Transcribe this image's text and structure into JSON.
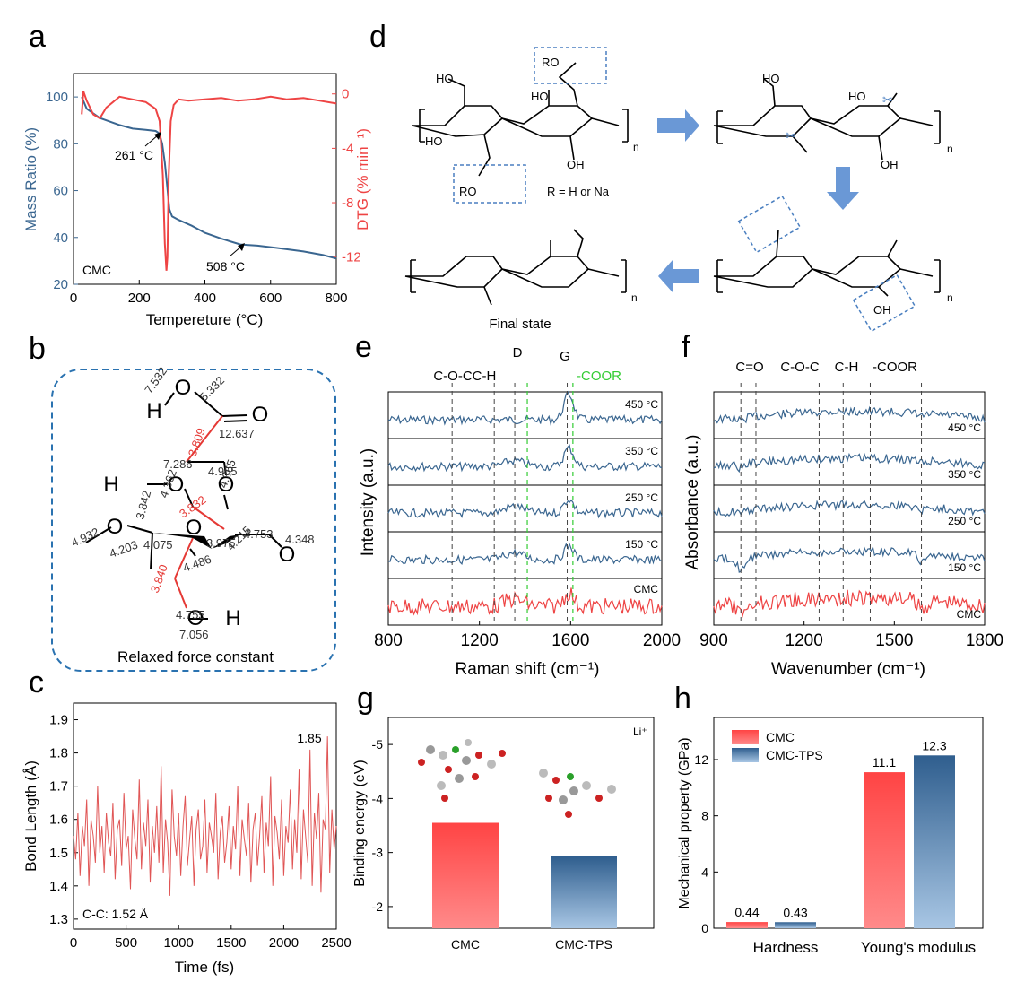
{
  "colors": {
    "blue": "#3a6690",
    "red": "#ee4444",
    "green": "#33cc33",
    "dash": "#555555"
  },
  "panels": {
    "a": {
      "letter": "a",
      "corner_text": "CMC",
      "xlabel": "Tempereture (°C)",
      "ylabel_left": "Mass Ratio (%)",
      "ylabel_right": "DTG (% min⁻¹)",
      "xticks": [
        "0",
        "200",
        "400",
        "600",
        "800"
      ],
      "yticks_left": [
        "20",
        "40",
        "60",
        "80",
        "100"
      ],
      "yticks_right": [
        "0",
        "-4",
        "-8",
        "-12"
      ],
      "annotations": [
        "261 °C",
        "508 °C"
      ],
      "xlim": [
        0,
        800
      ],
      "ylim_left": [
        20,
        110
      ],
      "ylim_right": [
        -14,
        1.5
      ],
      "mass_series": {
        "x": [
          25,
          40,
          60,
          80,
          100,
          140,
          180,
          220,
          250,
          261,
          270,
          278,
          285,
          292,
          300,
          320,
          360,
          400,
          450,
          508,
          560,
          620,
          700,
          760,
          800
        ],
        "y": [
          100,
          95,
          93,
          91,
          90,
          88,
          86.5,
          86,
          85.5,
          84.5,
          80,
          72,
          62,
          52,
          49,
          47.5,
          45,
          42,
          39.5,
          37,
          36.5,
          35.5,
          34,
          32.5,
          31
        ]
      },
      "dtg_series": {
        "x": [
          25,
          30,
          40,
          60,
          80,
          100,
          140,
          180,
          220,
          250,
          262,
          272,
          278,
          283,
          286,
          290,
          296,
          305,
          320,
          350,
          400,
          450,
          500,
          550,
          600,
          650,
          700,
          750,
          800
        ],
        "y": [
          -1.5,
          0.2,
          -0.5,
          -1.5,
          -1.8,
          -1,
          -0.2,
          -0.4,
          -0.6,
          -1.1,
          -2,
          -6,
          -11,
          -13,
          -12,
          -6,
          -2,
          -0.8,
          -0.4,
          -0.5,
          -0.4,
          -0.3,
          -0.5,
          -0.4,
          -0.2,
          -0.4,
          -0.3,
          -0.5,
          -0.7
        ]
      }
    },
    "b": {
      "letter": "b",
      "caption": "Relaxed force constant",
      "atoms": [
        "H",
        "O",
        "O",
        "H",
        "O",
        "O",
        "O",
        "O",
        "O",
        "H"
      ],
      "black_values": [
        "7.532",
        "5.332",
        "12.637",
        "4.955",
        "7.286",
        "4.362",
        "4.365",
        "4.932",
        "4.203",
        "3.842",
        "4.075",
        "4.486",
        "3.975",
        "4.215",
        "4.753",
        "4.348",
        "4.755",
        "7.056"
      ],
      "red_values": [
        "3.809",
        "3.832",
        "3.840"
      ]
    },
    "c": {
      "letter": "c",
      "xlabel": "Time (fs)",
      "ylabel": "Bond Length (Å)",
      "xticks": [
        "0",
        "500",
        "1000",
        "1500",
        "2000",
        "2500"
      ],
      "yticks": [
        "1.3",
        "1.4",
        "1.5",
        "1.6",
        "1.7",
        "1.8",
        "1.9"
      ],
      "xlim": [
        0,
        2500
      ],
      "ylim": [
        1.27,
        1.95
      ],
      "annotation_max": "1.85",
      "annotation_eq": "C-C: 1.52  Å",
      "series_y": [
        1.55,
        1.48,
        1.62,
        1.43,
        1.58,
        1.52,
        1.66,
        1.4,
        1.6,
        1.55,
        1.47,
        1.7,
        1.5,
        1.58,
        1.44,
        1.62,
        1.53,
        1.49,
        1.65,
        1.42,
        1.57,
        1.6,
        1.46,
        1.68,
        1.51,
        1.55,
        1.39,
        1.63,
        1.54,
        1.48,
        1.72,
        1.45,
        1.59,
        1.52,
        1.66,
        1.41,
        1.58,
        1.5,
        1.64,
        1.47,
        1.76,
        1.44,
        1.6,
        1.53,
        1.37,
        1.69,
        1.55,
        1.49,
        1.62,
        1.43,
        1.58,
        1.67,
        1.46,
        1.54,
        1.61,
        1.4,
        1.57,
        1.63,
        1.48,
        1.52,
        1.66,
        1.44,
        1.59,
        1.55,
        1.5,
        1.68,
        1.42,
        1.56,
        1.61,
        1.47,
        1.53,
        1.64,
        1.45,
        1.58,
        1.51,
        1.7,
        1.43,
        1.6,
        1.54,
        1.49,
        1.65,
        1.41,
        1.57,
        1.62,
        1.46,
        1.55,
        1.67,
        1.44,
        1.59,
        1.52,
        1.73,
        1.4,
        1.61,
        1.56,
        1.48,
        1.66,
        1.43,
        1.58,
        1.53,
        1.69,
        1.45,
        1.6,
        1.5,
        1.75,
        1.42,
        1.63,
        1.55,
        1.47,
        1.81,
        1.4,
        1.62,
        1.54,
        1.68,
        1.38,
        1.6,
        1.57,
        1.85,
        1.44,
        1.63,
        1.51,
        1.58
      ]
    },
    "d": {
      "letter": "d",
      "r_label": "R = H or Na",
      "final_label": "Final state",
      "group_labels": [
        "RO",
        "RO",
        "HO",
        "HO",
        "HO",
        "HO",
        "HO",
        "OH",
        "OH",
        "OH"
      ]
    },
    "e": {
      "letter": "e",
      "xlabel": "Raman shift (cm⁻¹)",
      "ylabel": "Intensity (a.u.)",
      "xticks": [
        "800",
        "1200",
        "1600",
        "2000"
      ],
      "xlim": [
        800,
        2000
      ],
      "peak_labels": [
        "C-O-C",
        "C-H",
        "D",
        "G",
        "-COOR"
      ],
      "black_dash_x": [
        1080,
        1265,
        1355,
        1585
      ],
      "green_dash_x": [
        1410,
        1610
      ],
      "traces": [
        "450 °C",
        "350 °C",
        "250 °C",
        "150 °C",
        "CMC"
      ]
    },
    "f": {
      "letter": "f",
      "xlabel": "Wavenumber (cm⁻¹)",
      "ylabel": "Absorbance (a.u.)",
      "xticks": [
        "900",
        "1200",
        "1500",
        "1800"
      ],
      "xlim": [
        900,
        1800
      ],
      "peak_labels": [
        "C=O",
        "C-O-C",
        "C-H",
        "-COOR"
      ],
      "dash_x": [
        990,
        1040,
        1250,
        1330,
        1420,
        1590
      ],
      "traces": [
        "450 °C",
        "350 °C",
        "250 °C",
        "150 °C",
        "CMC"
      ]
    },
    "g": {
      "letter": "g",
      "ylabel": "Binding energy (eV)",
      "yticks": [
        "-5",
        "-4",
        "-3",
        "-2"
      ],
      "ylim": [
        -1.6,
        -5.5
      ],
      "corner_text": "Li⁺",
      "categories": [
        "CMC",
        "CMC-TPS"
      ],
      "values": [
        -3.55,
        -2.93
      ]
    },
    "h": {
      "letter": "h",
      "ylabel": "Mechanical property (GPa)",
      "yticks": [
        "0",
        "4",
        "8",
        "12"
      ],
      "ylim": [
        0,
        15
      ],
      "categories": [
        "Hardness",
        "Young's modulus"
      ],
      "series": [
        {
          "name": "CMC",
          "values": [
            0.44,
            11.1
          ],
          "labels": [
            "0.44",
            "11.1"
          ]
        },
        {
          "name": "CMC-TPS",
          "values": [
            0.43,
            12.3
          ],
          "labels": [
            "0.43",
            "12.3"
          ]
        }
      ]
    }
  },
  "chart_data": [
    {
      "type": "line",
      "panel": "a",
      "xlabel": "Tempereture (°C)",
      "ylabel": "Mass Ratio (%)",
      "y2label": "DTG (% min⁻¹)",
      "xlim": [
        0,
        800
      ],
      "ylim": [
        20,
        110
      ],
      "y2lim": [
        -14,
        1.5
      ],
      "annotations": [
        "261 °C",
        "508 °C"
      ]
    },
    {
      "type": "line",
      "panel": "c",
      "xlabel": "Time (fs)",
      "ylabel": "Bond Length (Å)",
      "xlim": [
        0,
        2500
      ],
      "ylim": [
        1.27,
        1.95
      ],
      "annotations": [
        "1.85",
        "C-C: 1.52  Å"
      ]
    },
    {
      "type": "line",
      "panel": "e",
      "xlabel": "Raman shift (cm⁻¹)",
      "ylabel": "Intensity (a.u.)",
      "xlim": [
        800,
        2000
      ],
      "series": [
        {
          "name": "450 °C"
        },
        {
          "name": "350 °C"
        },
        {
          "name": "250 °C"
        },
        {
          "name": "150 °C"
        },
        {
          "name": "CMC"
        }
      ]
    },
    {
      "type": "line",
      "panel": "f",
      "xlabel": "Wavenumber (cm⁻¹)",
      "ylabel": "Absorbance (a.u.)",
      "xlim": [
        900,
        1800
      ],
      "series": [
        {
          "name": "450 °C"
        },
        {
          "name": "350 °C"
        },
        {
          "name": "250 °C"
        },
        {
          "name": "150 °C"
        },
        {
          "name": "CMC"
        }
      ]
    },
    {
      "type": "bar",
      "panel": "g",
      "ylabel": "Binding energy (eV)",
      "categories": [
        "CMC",
        "CMC-TPS"
      ],
      "values": [
        -3.55,
        -2.93
      ]
    },
    {
      "type": "bar",
      "panel": "h",
      "ylabel": "Mechanical property (GPa)",
      "categories": [
        "Hardness",
        "Young's modulus"
      ],
      "series": [
        {
          "name": "CMC",
          "values": [
            0.44,
            11.1
          ]
        },
        {
          "name": "CMC-TPS",
          "values": [
            0.43,
            12.3
          ]
        }
      ]
    }
  ]
}
